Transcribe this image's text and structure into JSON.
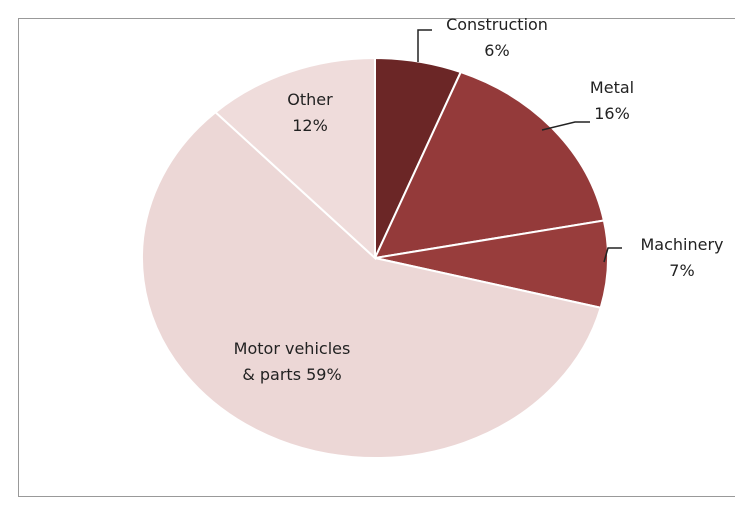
{
  "chart_data": {
    "type": "pie",
    "categories": [
      "Construction",
      "Metal",
      "Machinery",
      "Motor vehicles & parts",
      "Other"
    ],
    "values": [
      6,
      16,
      7,
      59,
      12
    ],
    "value_labels": [
      "6%",
      "16%",
      "7%",
      "59%",
      "12%"
    ],
    "colors": [
      "#6b2626",
      "#943a3a",
      "#983d3c",
      "#ecd7d6",
      "#efdcdb"
    ]
  }
}
